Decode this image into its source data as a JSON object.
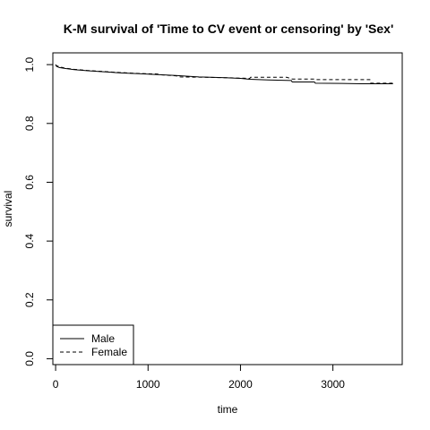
{
  "chart_data": {
    "type": "line",
    "title": "K-M survival of 'Time to CV event or censoring' by 'Sex'",
    "xlabel": "time",
    "ylabel": "survival",
    "xlim": [
      -30,
      3750
    ],
    "ylim": [
      -0.02,
      1.04
    ],
    "xticks": [
      0,
      1000,
      2000,
      3000
    ],
    "yticks": [
      0.0,
      0.2,
      0.4,
      0.6,
      0.8,
      1.0
    ],
    "xtick_labels": [
      "0",
      "1000",
      "2000",
      "3000"
    ],
    "ytick_labels": [
      "0.0",
      "0.2",
      "0.4",
      "0.6",
      "0.8",
      "1.0"
    ],
    "legend_position": "bottom-left",
    "grid": false,
    "series": [
      {
        "name": "Male",
        "line_style": "solid",
        "points": [
          [
            0,
            1.0
          ],
          [
            10,
            0.994
          ],
          [
            40,
            0.99
          ],
          [
            100,
            0.987
          ],
          [
            200,
            0.983
          ],
          [
            350,
            0.979
          ],
          [
            500,
            0.976
          ],
          [
            700,
            0.972
          ],
          [
            900,
            0.969
          ],
          [
            1100,
            0.966
          ],
          [
            1300,
            0.963
          ],
          [
            1450,
            0.96
          ],
          [
            1550,
            0.958
          ],
          [
            1800,
            0.956
          ],
          [
            2000,
            0.953
          ],
          [
            2100,
            0.95
          ],
          [
            2300,
            0.948
          ],
          [
            2550,
            0.946
          ],
          [
            2560,
            0.941
          ],
          [
            2800,
            0.941
          ],
          [
            2810,
            0.937
          ],
          [
            3100,
            0.936
          ],
          [
            3300,
            0.935
          ],
          [
            3650,
            0.935
          ]
        ]
      },
      {
        "name": "Female",
        "line_style": "dashed",
        "points": [
          [
            0,
            1.0
          ],
          [
            10,
            0.996
          ],
          [
            40,
            0.993
          ],
          [
            100,
            0.988
          ],
          [
            200,
            0.984
          ],
          [
            350,
            0.98
          ],
          [
            500,
            0.977
          ],
          [
            700,
            0.973
          ],
          [
            900,
            0.97
          ],
          [
            1100,
            0.968
          ],
          [
            1150,
            0.965
          ],
          [
            1300,
            0.962
          ],
          [
            1350,
            0.958
          ],
          [
            1600,
            0.957
          ],
          [
            1900,
            0.955
          ],
          [
            2100,
            0.953
          ],
          [
            2110,
            0.957
          ],
          [
            2500,
            0.957
          ],
          [
            2560,
            0.951
          ],
          [
            2800,
            0.951
          ],
          [
            2810,
            0.949
          ],
          [
            3400,
            0.949
          ],
          [
            3410,
            0.937
          ],
          [
            3650,
            0.937
          ]
        ]
      }
    ]
  }
}
